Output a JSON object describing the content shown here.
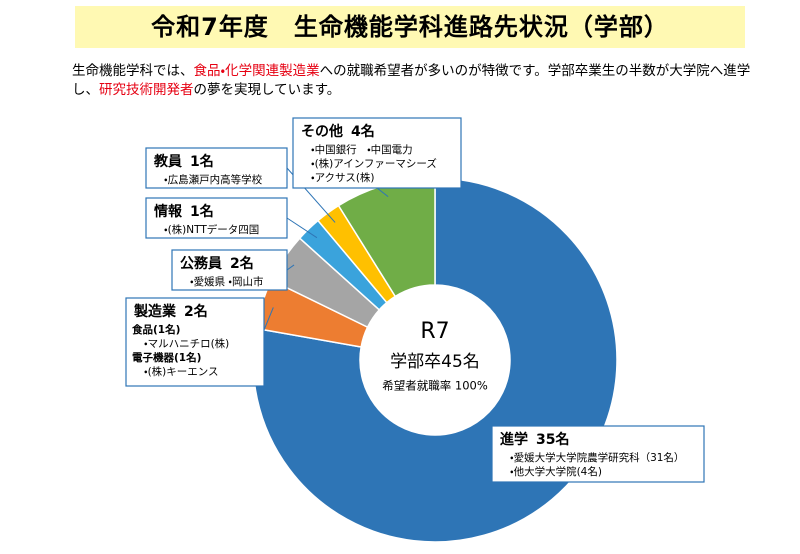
{
  "header": {
    "title": "令和7年度　生命機能学科進路先状況（学部）",
    "description": [
      "生命機能学科では、",
      "食品・化学関連製造業",
      "への就職希望者が多いのが特徴です。学部卒業生の半数が大学院へ進学し、",
      "研究技術開発者",
      "の夢を実現しています。"
    ]
  },
  "chart_data": {
    "type": "donut",
    "center_text": [
      "R7",
      "学部卒45名",
      "希望者就職率 100%"
    ],
    "categories": [
      "進学",
      "製造業",
      "公務員",
      "情報",
      "教員",
      "その他"
    ],
    "values": [
      35,
      2,
      2,
      1,
      1,
      4
    ],
    "value_labels": [
      "35名",
      "2名",
      "2名",
      "1名",
      "1名",
      "4名"
    ],
    "colors": [
      "#2e75b6",
      "#ed7d31",
      "#a5a5a5",
      "#3aa3dc",
      "#ffc000",
      "#70ad47"
    ],
    "details": [
      [
        "・愛媛大学大学院農学研究科（31名）",
        "・他大学大学院(4名)"
      ],
      [
        "食品(1名)",
        "・マルハニチロ(株)",
        "電子機器(1名)",
        "・(株)キーエンス"
      ],
      [
        "・愛媛県 ・岡山市"
      ],
      [
        "・(株)NTTデータ四国"
      ],
      [
        "・広島瀬戸内高等学校"
      ],
      [
        "・中国銀行　・中国電力",
        "・(株)アインファーマシーズ",
        "・アクサス(株)"
      ]
    ]
  }
}
